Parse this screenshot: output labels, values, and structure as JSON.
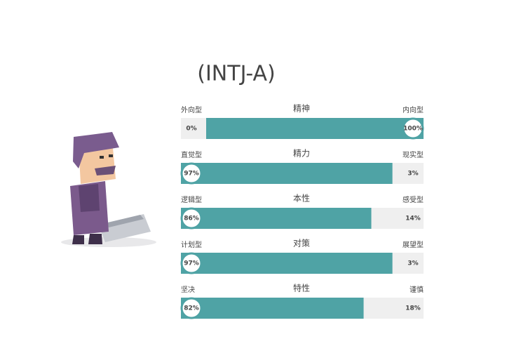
{
  "chart_data": {
    "type": "trait-bars",
    "title": "(INTJ-A)",
    "categories": [
      "精神",
      "精力",
      "本性",
      "对策",
      "特性"
    ],
    "left_labels": [
      "外向型",
      "直觉型",
      "逻辑型",
      "计划型",
      "坚决"
    ],
    "right_labels": [
      "内向型",
      "现实型",
      "感受型",
      "展望型",
      "谨慎"
    ],
    "series": [
      {
        "color": "#4fa3a5",
        "values": [
          0,
          97,
          86,
          97,
          82
        ],
        "value_labels": [
          "0%",
          "97%",
          "86%",
          "97%",
          "82%"
        ]
      },
      {
        "color": "#4fa3a5",
        "values": [
          100,
          3,
          14,
          3,
          18
        ],
        "value_labels": [
          "100%",
          "3%",
          "14%",
          "3%",
          "18%"
        ]
      }
    ],
    "ylim": [
      0,
      100
    ]
  }
}
